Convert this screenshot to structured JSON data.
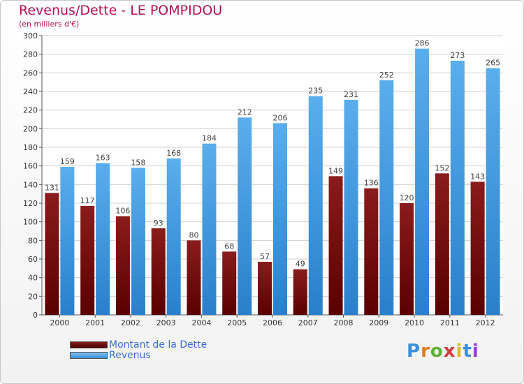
{
  "title": "Revenus/Dette - LE POMPIDOU",
  "subtitle": "(en milliers d'€)",
  "logo_text": "Proxiti",
  "colors": {
    "title": "#b5124f",
    "debt": "#8a1c1c",
    "debt_dark": "#5a0000",
    "revenue": "#5aaeec",
    "revenue_dark": "#2a7fcc",
    "legend_text": "#3b6fd8"
  },
  "legend": [
    {
      "label": "Montant de la Dette",
      "color_key": "debt"
    },
    {
      "label": "Revenus",
      "color_key": "revenue"
    }
  ],
  "chart_data": {
    "type": "bar",
    "categories": [
      "2000",
      "2001",
      "2002",
      "2003",
      "2004",
      "2005",
      "2006",
      "2007",
      "2008",
      "2009",
      "2010",
      "2011",
      "2012"
    ],
    "series": [
      {
        "name": "Montant de la Dette",
        "values": [
          131,
          117,
          106,
          93,
          80,
          68,
          57,
          49,
          149,
          136,
          120,
          152,
          143
        ]
      },
      {
        "name": "Revenus",
        "values": [
          159,
          163,
          158,
          168,
          184,
          212,
          206,
          235,
          231,
          252,
          286,
          273,
          265
        ]
      }
    ],
    "title": "Revenus/Dette - LE POMPIDOU",
    "ylabel": "(en milliers d'€)",
    "ylim": [
      0,
      300
    ],
    "yticks": [
      0,
      20,
      40,
      60,
      80,
      100,
      120,
      140,
      160,
      180,
      200,
      220,
      240,
      260,
      280,
      300
    ],
    "grid": true,
    "legend_position": "bottom-left"
  }
}
